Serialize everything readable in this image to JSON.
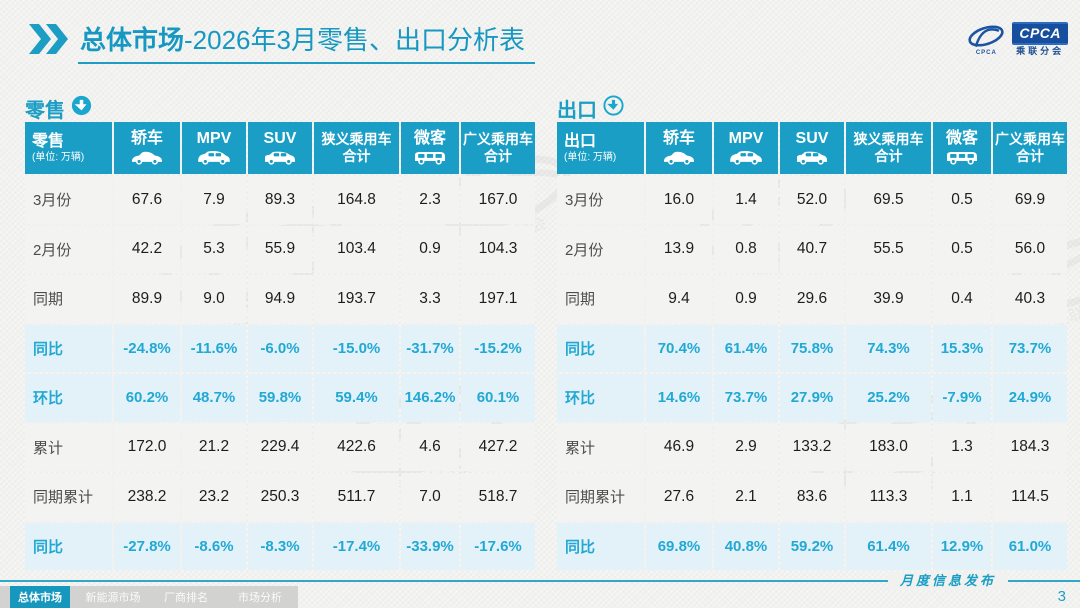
{
  "header": {
    "title_bold": "总体市场",
    "title_rest": "-2026年3月零售、出口分析表",
    "logo": {
      "brand": "CPCA",
      "brand_sub": "乘联分会",
      "emblem_caption": "CPCA"
    }
  },
  "colors": {
    "accent_teal": "#1a9ec5",
    "percent_text": "#21a9d4",
    "percent_row_bg": "#e3f1f9",
    "data_row_bg": "#f3f4f1",
    "logo_blue": "#174f9e",
    "tab_bar_bg": "#d2d3d1"
  },
  "tables": [
    {
      "id": "retail",
      "section_label": "零售",
      "arrow_icon": "down-arrow-filled-icon",
      "corner_label": "零售",
      "unit_label": "(单位: 万辆)",
      "columns": [
        {
          "label": "轿车",
          "icon": "sedan-icon"
        },
        {
          "label": "MPV",
          "icon": "mpv-icon"
        },
        {
          "label": "SUV",
          "icon": "suv-icon"
        },
        {
          "label": "狭义乘用车",
          "label2": "合计"
        },
        {
          "label": "微客",
          "icon": "microvan-icon"
        },
        {
          "label": "广义乘用车",
          "label2": "合计"
        }
      ],
      "rows": [
        {
          "label": "3月份",
          "type": "data",
          "values": [
            "67.6",
            "7.9",
            "89.3",
            "164.8",
            "2.3",
            "167.0"
          ]
        },
        {
          "label": "2月份",
          "type": "data",
          "values": [
            "42.2",
            "5.3",
            "55.9",
            "103.4",
            "0.9",
            "104.3"
          ]
        },
        {
          "label": "同期",
          "type": "data",
          "values": [
            "89.9",
            "9.0",
            "94.9",
            "193.7",
            "3.3",
            "197.1"
          ]
        },
        {
          "label": "同比",
          "type": "percent",
          "values": [
            "-24.8%",
            "-11.6%",
            "-6.0%",
            "-15.0%",
            "-31.7%",
            "-15.2%"
          ]
        },
        {
          "label": "环比",
          "type": "percent",
          "values": [
            "60.2%",
            "48.7%",
            "59.8%",
            "59.4%",
            "146.2%",
            "60.1%"
          ]
        },
        {
          "label": "累计",
          "type": "data",
          "values": [
            "172.0",
            "21.2",
            "229.4",
            "422.6",
            "4.6",
            "427.2"
          ]
        },
        {
          "label": "同期累计",
          "type": "data",
          "values": [
            "238.2",
            "23.2",
            "250.3",
            "511.7",
            "7.0",
            "518.7"
          ]
        },
        {
          "label": "同比",
          "type": "percent",
          "values": [
            "-27.8%",
            "-8.6%",
            "-8.3%",
            "-17.4%",
            "-33.9%",
            "-17.6%"
          ]
        }
      ]
    },
    {
      "id": "export",
      "section_label": "出口",
      "arrow_icon": "down-arrow-outline-icon",
      "corner_label": "出口",
      "unit_label": "(单位: 万辆)",
      "columns": [
        {
          "label": "轿车",
          "icon": "sedan-icon"
        },
        {
          "label": "MPV",
          "icon": "mpv-icon"
        },
        {
          "label": "SUV",
          "icon": "suv-icon"
        },
        {
          "label": "狭义乘用车",
          "label2": "合计"
        },
        {
          "label": "微客",
          "icon": "microvan-icon"
        },
        {
          "label": "广义乘用车",
          "label2": "合计"
        }
      ],
      "rows": [
        {
          "label": "3月份",
          "type": "data",
          "values": [
            "16.0",
            "1.4",
            "52.0",
            "69.5",
            "0.5",
            "69.9"
          ]
        },
        {
          "label": "2月份",
          "type": "data",
          "values": [
            "13.9",
            "0.8",
            "40.7",
            "55.5",
            "0.5",
            "56.0"
          ]
        },
        {
          "label": "同期",
          "type": "data",
          "values": [
            "9.4",
            "0.9",
            "29.6",
            "39.9",
            "0.4",
            "40.3"
          ]
        },
        {
          "label": "同比",
          "type": "percent",
          "values": [
            "70.4%",
            "61.4%",
            "75.8%",
            "74.3%",
            "15.3%",
            "73.7%"
          ]
        },
        {
          "label": "环比",
          "type": "percent",
          "values": [
            "14.6%",
            "73.7%",
            "27.9%",
            "25.2%",
            "-7.9%",
            "24.9%"
          ]
        },
        {
          "label": "累计",
          "type": "data",
          "values": [
            "46.9",
            "2.9",
            "133.2",
            "183.0",
            "1.3",
            "184.3"
          ]
        },
        {
          "label": "同期累计",
          "type": "data",
          "values": [
            "27.6",
            "2.1",
            "83.6",
            "113.3",
            "1.1",
            "114.5"
          ]
        },
        {
          "label": "同比",
          "type": "percent",
          "values": [
            "69.8%",
            "40.8%",
            "59.2%",
            "61.4%",
            "12.9%",
            "61.0%"
          ]
        }
      ]
    }
  ],
  "footer": {
    "ribbon_text": "月度信息发布",
    "page_number": "3",
    "tabs": [
      {
        "label": "总体市场",
        "active": true
      },
      {
        "label": "新能源市场",
        "active": false
      },
      {
        "label": "厂商排名",
        "active": false
      },
      {
        "label": "市场分析",
        "active": false
      }
    ]
  }
}
